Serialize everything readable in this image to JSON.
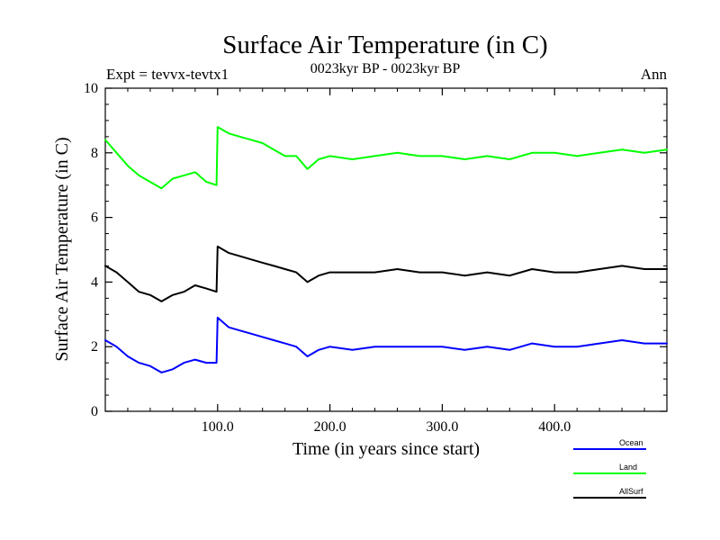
{
  "chart_data": {
    "type": "line",
    "title": "Surface Air Temperature (in C)",
    "subtitle": "0023kyr BP - 0023kyr BP",
    "left_note": "Expt = tevvx-tevtx1",
    "right_note": "Ann",
    "xlabel": "Time (in years since start)",
    "ylabel": "Surface Air Temperature (in C)",
    "xlim": [
      0,
      500
    ],
    "ylim": [
      0,
      10
    ],
    "x_tick_values": [
      100,
      200,
      300,
      400
    ],
    "x_tick_labels": [
      "100.0",
      "200.0",
      "300.0",
      "400.0"
    ],
    "y_tick_values": [
      0,
      2,
      4,
      6,
      8,
      10
    ],
    "y_tick_labels": [
      "0",
      "2",
      "4",
      "6",
      "8",
      "10"
    ],
    "grid": false,
    "legend_position": "bottom-right, outside plot",
    "x": [
      0,
      10,
      20,
      30,
      40,
      50,
      60,
      70,
      80,
      90,
      99,
      100,
      110,
      120,
      130,
      140,
      150,
      160,
      170,
      180,
      190,
      200,
      220,
      240,
      260,
      280,
      300,
      320,
      340,
      360,
      380,
      400,
      420,
      440,
      460,
      480,
      500
    ],
    "series": [
      {
        "name": "Ocean",
        "color": "#0000ff",
        "values": [
          2.2,
          2.0,
          1.7,
          1.5,
          1.4,
          1.2,
          1.3,
          1.5,
          1.6,
          1.5,
          1.5,
          2.9,
          2.6,
          2.5,
          2.4,
          2.3,
          2.2,
          2.1,
          2.0,
          1.7,
          1.9,
          2.0,
          1.9,
          2.0,
          2.0,
          2.0,
          2.0,
          1.9,
          2.0,
          1.9,
          2.1,
          2.0,
          2.0,
          2.1,
          2.2,
          2.1,
          2.1
        ]
      },
      {
        "name": "Land",
        "color": "#00ff00",
        "values": [
          8.4,
          8.0,
          7.6,
          7.3,
          7.1,
          6.9,
          7.2,
          7.3,
          7.4,
          7.1,
          7.0,
          8.8,
          8.6,
          8.5,
          8.4,
          8.3,
          8.1,
          7.9,
          7.9,
          7.5,
          7.8,
          7.9,
          7.8,
          7.9,
          8.0,
          7.9,
          7.9,
          7.8,
          7.9,
          7.8,
          8.0,
          8.0,
          7.9,
          8.0,
          8.1,
          8.0,
          8.1
        ]
      },
      {
        "name": "AllSurf",
        "color": "#000000",
        "values": [
          4.5,
          4.3,
          4.0,
          3.7,
          3.6,
          3.4,
          3.6,
          3.7,
          3.9,
          3.8,
          3.7,
          5.1,
          4.9,
          4.8,
          4.7,
          4.6,
          4.5,
          4.4,
          4.3,
          4.0,
          4.2,
          4.3,
          4.3,
          4.3,
          4.4,
          4.3,
          4.3,
          4.2,
          4.3,
          4.2,
          4.4,
          4.3,
          4.3,
          4.4,
          4.5,
          4.4,
          4.4
        ]
      }
    ]
  }
}
